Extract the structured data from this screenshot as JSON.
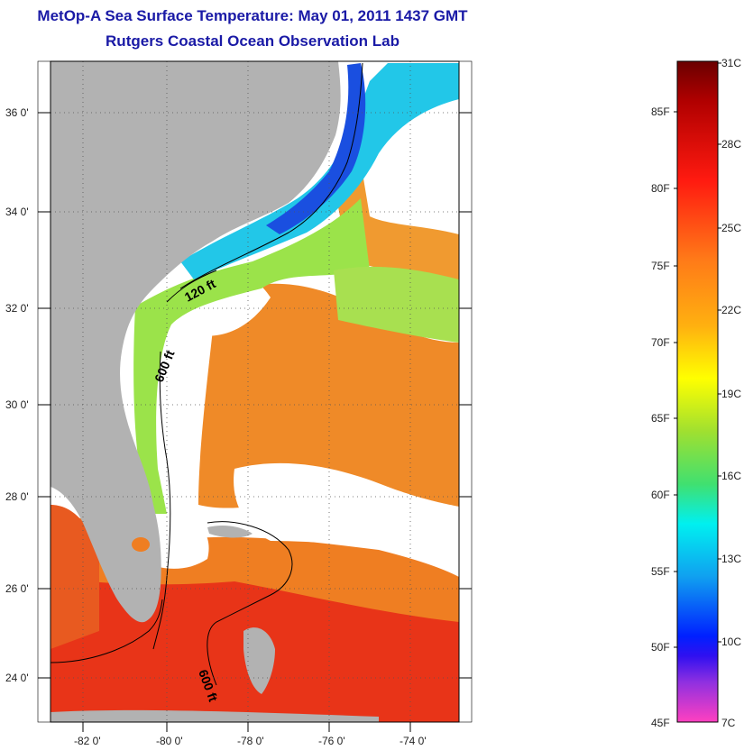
{
  "title": "MetOp-A Sea Surface Temperature:  May 01, 2011 1437 GMT",
  "subtitle": "Rutgers Coastal Ocean Observation Lab",
  "map": {
    "lat_labels": [
      "36 0'",
      "34 0'",
      "32 0'",
      "30 0'",
      "28 0'",
      "26 0'",
      "24 0'"
    ],
    "lon_labels": [
      "-82 0'",
      "-80 0'",
      "-78 0'",
      "-76 0'",
      "-74 0'"
    ],
    "contour_labels": [
      "120 ft",
      "600 ft",
      "600 ft"
    ],
    "colors": {
      "land": "#b2b2b2",
      "cloud": "#ffffff",
      "warm_water": "#ef8a28",
      "hot_water": "#e82a10",
      "cool_water": "#9be34a",
      "cold_water": "#22c7e8",
      "coldest_water": "#1a4fe0"
    }
  },
  "colorbar": {
    "fahrenheit_labels": [
      "85F",
      "80F",
      "75F",
      "70F",
      "65F",
      "60F",
      "55F",
      "50F",
      "45F"
    ],
    "celsius_labels": [
      "31C",
      "28C",
      "25C",
      "22C",
      "19C",
      "16C",
      "13C",
      "10C",
      "7C"
    ]
  }
}
